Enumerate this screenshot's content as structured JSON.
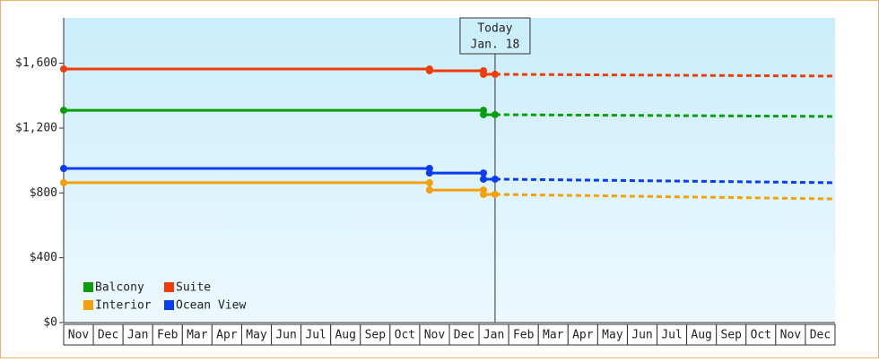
{
  "chart_data": {
    "type": "line",
    "categories": [
      "Nov",
      "Dec",
      "Jan",
      "Feb",
      "Mar",
      "Apr",
      "May",
      "Jun",
      "Jul",
      "Aug",
      "Sep",
      "Oct",
      "Nov",
      "Dec",
      "Jan",
      "Feb",
      "Mar",
      "Apr",
      "May",
      "Jun",
      "Jul",
      "Aug",
      "Sep",
      "Oct",
      "Nov",
      "Dec"
    ],
    "xlim": [
      0,
      26
    ],
    "ylim": [
      0,
      1880
    ],
    "yticks": [
      {
        "value": 0,
        "label": "$0"
      },
      {
        "value": 400,
        "label": "$400"
      },
      {
        "value": 800,
        "label": "$800"
      },
      {
        "value": 1200,
        "label": "$1,200"
      },
      {
        "value": 1600,
        "label": "$1,600"
      }
    ],
    "legend": "lower left",
    "annotation": {
      "lines": [
        "Today",
        "Jan. 18"
      ],
      "x": 14.54
    },
    "series": [
      {
        "name": "Balcony",
        "color": "#0a9e0a",
        "x": [
          0,
          14.15,
          14.15,
          14.54
        ],
        "values": [
          1310,
          1310,
          1283,
          1283
        ],
        "forecast_x": [
          14.54,
          26
        ],
        "forecast_values": [
          1283,
          1272
        ]
      },
      {
        "name": "Suite",
        "color": "#f03c0a",
        "x": [
          0,
          12.33,
          12.33,
          14.15,
          14.15,
          14.54
        ],
        "values": [
          1565,
          1565,
          1554,
          1554,
          1532,
          1532
        ],
        "forecast_x": [
          14.54,
          26
        ],
        "forecast_values": [
          1532,
          1521
        ]
      },
      {
        "name": "Interior",
        "color": "#f5a00a",
        "x": [
          0,
          12.33,
          12.33,
          14.15,
          14.15,
          14.54
        ],
        "values": [
          863,
          863,
          818,
          818,
          791,
          791
        ],
        "forecast_x": [
          14.54,
          26
        ],
        "forecast_values": [
          791,
          763
        ]
      },
      {
        "name": "Ocean View",
        "color": "#0a3cf5",
        "x": [
          0,
          12.33,
          12.33,
          14.15,
          14.15,
          14.54
        ],
        "values": [
          951,
          951,
          923,
          923,
          885,
          885
        ],
        "forecast_x": [
          14.54,
          26
        ],
        "forecast_values": [
          885,
          863
        ]
      }
    ]
  }
}
